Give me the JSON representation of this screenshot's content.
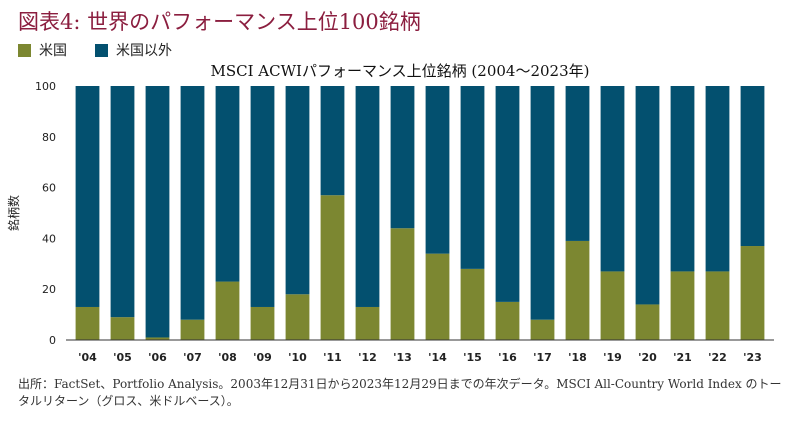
{
  "figure_title": "図表4: 世界のパフォーマンス上位100銘柄",
  "legend": [
    {
      "label": "米国",
      "color": "#7C8731"
    },
    {
      "label": "米国以外",
      "color": "#03506F"
    }
  ],
  "source_note": "出所：FactSet、Portfolio Analysis。2003年12月31日から2023年12月29日までの年次データ。MSCI All-Country World Index のトータルリターン（グロス、米ドルベース）。",
  "chart_data": {
    "type": "bar",
    "stacked": true,
    "title": "MSCI ACWIパフォーマンス上位銘柄 (2004〜2023年)",
    "xlabel": "",
    "ylabel": "銘柄数",
    "ylim": [
      0,
      100
    ],
    "yticks": [
      0,
      20,
      40,
      60,
      80,
      100
    ],
    "grid": false,
    "legend_position": "top-left",
    "categories": [
      "'04",
      "'05",
      "'06",
      "'07",
      "'08",
      "'09",
      "'10",
      "'11",
      "'12",
      "'13",
      "'14",
      "'15",
      "'16",
      "'17",
      "'18",
      "'19",
      "'20",
      "'21",
      "'22",
      "'23"
    ],
    "series": [
      {
        "name": "米国",
        "color": "#7C8731",
        "values": [
          13,
          9,
          1,
          8,
          23,
          13,
          18,
          57,
          13,
          44,
          34,
          28,
          15,
          8,
          39,
          27,
          14,
          27,
          27,
          37
        ]
      },
      {
        "name": "米国以外",
        "color": "#03506F",
        "values": [
          87,
          91,
          99,
          92,
          77,
          87,
          82,
          43,
          87,
          56,
          66,
          72,
          85,
          92,
          61,
          73,
          86,
          73,
          73,
          63
        ]
      }
    ]
  }
}
